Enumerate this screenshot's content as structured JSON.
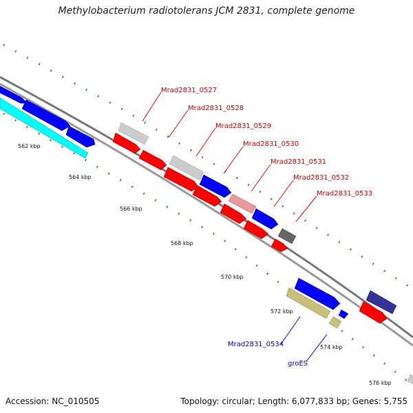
{
  "title": "Methylobacterium radiotolerans JCM 2831, complete genome",
  "footer": {
    "accession": "Accession: NC_010505",
    "summary": "Topology: circular; Length: 6,077,833 bp; Genes: 5,755"
  },
  "scale_labels": [
    "562 kbp",
    "564 kbp",
    "566 kbp",
    "568 kbp",
    "570 kbp",
    "572 kbp",
    "574 kbp",
    "576 kbp"
  ],
  "gene_labels": {
    "mrad0527": "Mrad2831_0527",
    "mrad0528": "Mrad2831_0528",
    "mrad0529": "Mrad2831_0529",
    "mrad0530": "Mrad2831_0530",
    "mrad0531": "Mrad2831_0531",
    "mrad0532": "Mrad2831_0532",
    "mrad0533": "Mrad2831_0533",
    "mrad0534": "Mrad2831_0534",
    "groES": "groES"
  },
  "colors": {
    "red": "#ff0000",
    "blue": "#0000ff",
    "cyan": "#00ffff",
    "light_gray": "#cccccc",
    "dark_gray": "#666666",
    "khaki": "#c8c07a",
    "pink": "#e89a9a",
    "navy": "#333399",
    "tick_green": "#1a7a1a",
    "label_red": "#cc0000",
    "label_blue": "#0000cc"
  }
}
